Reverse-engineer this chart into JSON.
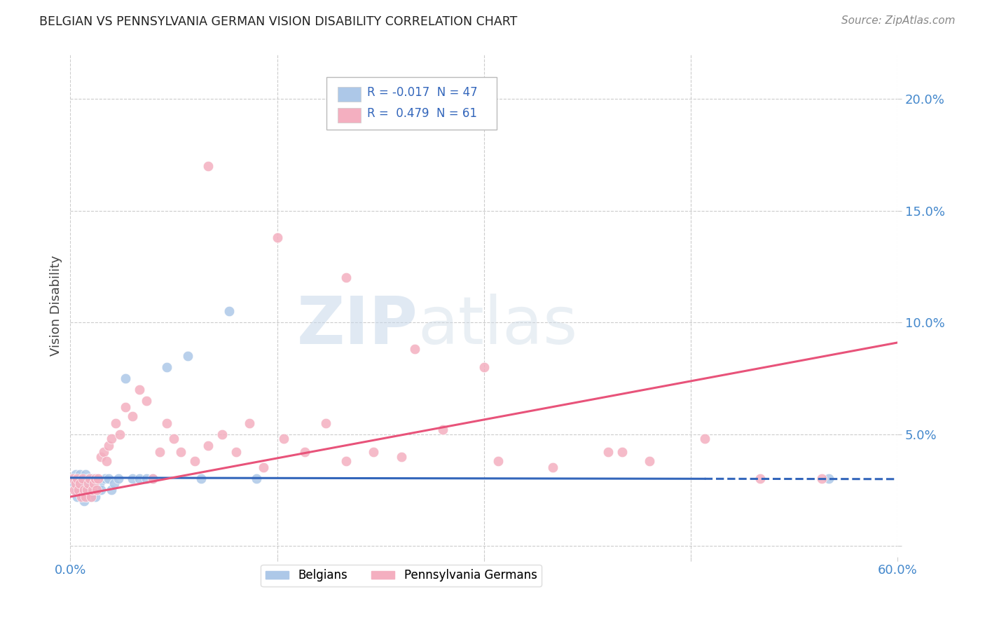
{
  "title": "BELGIAN VS PENNSYLVANIA GERMAN VISION DISABILITY CORRELATION CHART",
  "source": "Source: ZipAtlas.com",
  "ylabel": "Vision Disability",
  "xlim": [
    0.0,
    0.6
  ],
  "ylim": [
    -0.005,
    0.22
  ],
  "yticks": [
    0.0,
    0.05,
    0.1,
    0.15,
    0.2
  ],
  "ytick_labels": [
    "",
    "5.0%",
    "10.0%",
    "15.0%",
    "20.0%"
  ],
  "xticks": [
    0.0,
    0.15,
    0.3,
    0.45,
    0.6
  ],
  "xtick_labels": [
    "0.0%",
    "",
    "",
    "",
    "60.0%"
  ],
  "belgian_R": -0.017,
  "belgian_N": 47,
  "pg_R": 0.479,
  "pg_N": 61,
  "belgian_color": "#adc8e8",
  "pg_color": "#f4afc0",
  "belgian_line_color": "#3366bb",
  "pg_line_color": "#e8537a",
  "background_color": "#ffffff",
  "grid_color": "#cccccc",
  "watermark_color": "#ccd8e8",
  "belgian_x": [
    0.002,
    0.003,
    0.004,
    0.005,
    0.005,
    0.006,
    0.006,
    0.007,
    0.007,
    0.008,
    0.008,
    0.009,
    0.009,
    0.01,
    0.01,
    0.011,
    0.011,
    0.012,
    0.012,
    0.013,
    0.013,
    0.014,
    0.015,
    0.015,
    0.016,
    0.017,
    0.018,
    0.019,
    0.02,
    0.021,
    0.022,
    0.025,
    0.028,
    0.03,
    0.032,
    0.035,
    0.04,
    0.045,
    0.05,
    0.055,
    0.06,
    0.07,
    0.085,
    0.095,
    0.115,
    0.135,
    0.55
  ],
  "belgian_y": [
    0.03,
    0.028,
    0.032,
    0.025,
    0.022,
    0.03,
    0.025,
    0.032,
    0.028,
    0.027,
    0.025,
    0.022,
    0.03,
    0.028,
    0.02,
    0.025,
    0.032,
    0.022,
    0.028,
    0.025,
    0.03,
    0.025,
    0.028,
    0.022,
    0.03,
    0.025,
    0.022,
    0.03,
    0.025,
    0.028,
    0.025,
    0.03,
    0.03,
    0.025,
    0.028,
    0.03,
    0.075,
    0.03,
    0.03,
    0.03,
    0.03,
    0.08,
    0.085,
    0.03,
    0.105,
    0.03,
    0.03
  ],
  "pg_x": [
    0.002,
    0.003,
    0.004,
    0.005,
    0.006,
    0.007,
    0.008,
    0.009,
    0.01,
    0.011,
    0.012,
    0.013,
    0.014,
    0.015,
    0.016,
    0.017,
    0.018,
    0.019,
    0.02,
    0.022,
    0.024,
    0.026,
    0.028,
    0.03,
    0.033,
    0.036,
    0.04,
    0.045,
    0.05,
    0.055,
    0.06,
    0.065,
    0.07,
    0.075,
    0.08,
    0.09,
    0.1,
    0.11,
    0.12,
    0.13,
    0.14,
    0.155,
    0.17,
    0.185,
    0.2,
    0.22,
    0.24,
    0.27,
    0.31,
    0.35,
    0.39,
    0.42,
    0.46,
    0.5,
    0.545,
    0.1,
    0.15,
    0.2,
    0.25,
    0.3,
    0.4
  ],
  "pg_y": [
    0.03,
    0.025,
    0.028,
    0.03,
    0.025,
    0.028,
    0.022,
    0.03,
    0.025,
    0.022,
    0.025,
    0.028,
    0.03,
    0.022,
    0.025,
    0.028,
    0.03,
    0.025,
    0.03,
    0.04,
    0.042,
    0.038,
    0.045,
    0.048,
    0.055,
    0.05,
    0.062,
    0.058,
    0.07,
    0.065,
    0.03,
    0.042,
    0.055,
    0.048,
    0.042,
    0.038,
    0.045,
    0.05,
    0.042,
    0.055,
    0.035,
    0.048,
    0.042,
    0.055,
    0.038,
    0.042,
    0.04,
    0.052,
    0.038,
    0.035,
    0.042,
    0.038,
    0.048,
    0.03,
    0.03,
    0.17,
    0.138,
    0.12,
    0.088,
    0.08,
    0.042
  ],
  "belgian_line_intercept": 0.0305,
  "belgian_line_slope": -0.001,
  "pg_line_intercept": 0.022,
  "pg_line_slope": 0.115
}
